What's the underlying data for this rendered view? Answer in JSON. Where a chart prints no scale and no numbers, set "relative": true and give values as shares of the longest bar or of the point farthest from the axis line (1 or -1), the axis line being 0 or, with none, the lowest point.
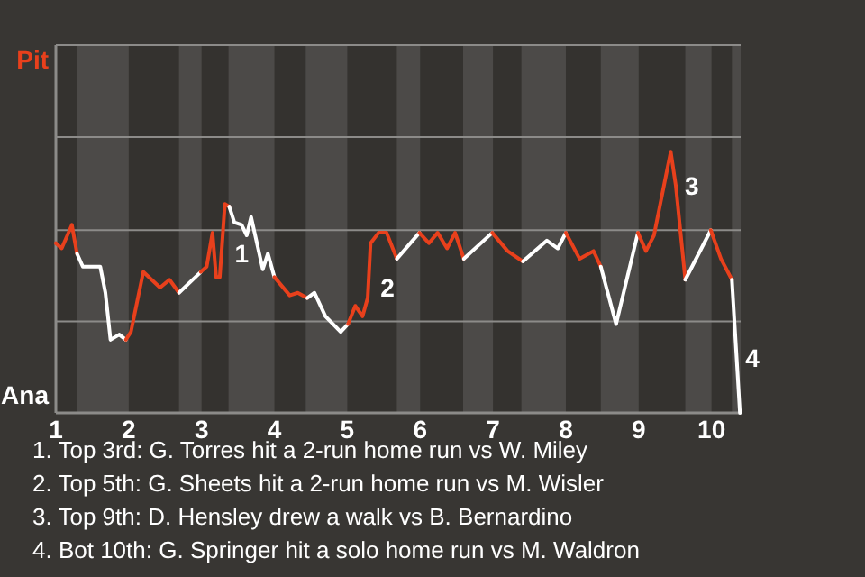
{
  "chart_data": {
    "type": "line",
    "relative": true,
    "xlim": [
      1,
      10.4
    ],
    "xticks": [
      1,
      2,
      3,
      4,
      5,
      6,
      7,
      8,
      9,
      10
    ],
    "marker": "none",
    "line_style": "solid",
    "ref_lines": [
      {
        "axis": "y",
        "value": 0.35,
        "color": "#8c8b89"
      },
      {
        "axis": "y",
        "value": 0.7,
        "color": "#8c8b89"
      }
    ],
    "bands": [
      {
        "axis": "x",
        "from": 1.29,
        "to": 2,
        "color": "#4c4a48"
      },
      {
        "axis": "x",
        "from": 2.69,
        "to": 3,
        "color": "#4c4a48"
      },
      {
        "axis": "x",
        "from": 3.37,
        "to": 4,
        "color": "#4c4a48"
      },
      {
        "axis": "x",
        "from": 4.43,
        "to": 5,
        "color": "#4c4a48"
      },
      {
        "axis": "x",
        "from": 5.68,
        "to": 6,
        "color": "#4c4a48"
      },
      {
        "axis": "x",
        "from": 6.59,
        "to": 7,
        "color": "#4c4a48"
      },
      {
        "axis": "x",
        "from": 7.39,
        "to": 8,
        "color": "#4c4a48"
      },
      {
        "axis": "x",
        "from": 8.48,
        "to": 9,
        "color": "#4c4a48"
      },
      {
        "axis": "x",
        "from": 9.64,
        "to": 10,
        "color": "#4c4a48"
      },
      {
        "axis": "x",
        "from": 10.28,
        "to": 10.4,
        "color": "#4c4a48"
      }
    ],
    "series": [
      {
        "name": "Pit",
        "color": "#e8401c",
        "x": [
          1,
          1.08,
          1.22,
          1.29
        ],
        "values": [
          0.65,
          0.63,
          0.72,
          0.61
        ]
      },
      {
        "name": "Ana",
        "color": "#ffffff",
        "x": [
          1.29,
          1.37,
          1.61,
          1.68,
          1.75,
          1.87,
          1.96
        ],
        "values": [
          0.61,
          0.56,
          0.56,
          0.46,
          0.28,
          0.3,
          0.28
        ]
      },
      {
        "color": "#e8401c",
        "x": [
          1.96,
          2.03,
          2.2,
          2.43,
          2.56,
          2.69
        ],
        "values": [
          0.28,
          0.31,
          0.54,
          0.48,
          0.51,
          0.46
        ]
      },
      {
        "color": "#ffffff",
        "x": [
          2.69,
          2.99
        ],
        "values": [
          0.46,
          0.54
        ]
      },
      {
        "color": "#e8401c",
        "x": [
          2.99,
          3.07,
          3.15,
          3.2,
          3.25,
          3.32,
          3.38
        ],
        "values": [
          0.54,
          0.56,
          0.69,
          0.52,
          0.52,
          0.8,
          0.79
        ]
      },
      {
        "color": "#ffffff",
        "x": [
          3.38,
          3.45,
          3.55,
          3.62,
          3.68,
          3.84,
          3.91,
          4
        ],
        "values": [
          0.79,
          0.73,
          0.72,
          0.68,
          0.75,
          0.55,
          0.61,
          0.52
        ]
      },
      {
        "color": "#e8401c",
        "x": [
          4,
          4.21,
          4.32,
          4.45
        ],
        "values": [
          0.52,
          0.45,
          0.46,
          0.44
        ]
      },
      {
        "color": "#ffffff",
        "x": [
          4.45,
          4.55,
          4.7,
          4.91,
          5.01
        ],
        "values": [
          0.44,
          0.46,
          0.37,
          0.31,
          0.34
        ]
      },
      {
        "color": "#e8401c",
        "x": [
          5.01,
          5.11,
          5.21,
          5.28,
          5.32,
          5.43,
          5.54,
          5.68
        ],
        "values": [
          0.34,
          0.41,
          0.37,
          0.44,
          0.65,
          0.69,
          0.69,
          0.59
        ]
      },
      {
        "color": "#ffffff",
        "x": [
          5.68,
          5.99
        ],
        "values": [
          0.59,
          0.69
        ]
      },
      {
        "color": "#e8401c",
        "x": [
          5.99,
          6.12,
          6.24,
          6.37,
          6.48,
          6.6
        ],
        "values": [
          0.69,
          0.65,
          0.69,
          0.63,
          0.69,
          0.59
        ]
      },
      {
        "color": "#ffffff",
        "x": [
          6.6,
          6.99
        ],
        "values": [
          0.59,
          0.69
        ]
      },
      {
        "color": "#e8401c",
        "x": [
          6.99,
          7.2,
          7.41
        ],
        "values": [
          0.69,
          0.62,
          0.58
        ]
      },
      {
        "color": "#ffffff",
        "x": [
          7.41,
          7.74,
          7.89,
          8
        ],
        "values": [
          0.58,
          0.66,
          0.63,
          0.69
        ]
      },
      {
        "color": "#e8401c",
        "x": [
          8,
          8.19,
          8.38,
          8.48
        ],
        "values": [
          0.69,
          0.59,
          0.62,
          0.56
        ]
      },
      {
        "color": "#ffffff",
        "x": [
          8.48,
          8.69,
          8.99
        ],
        "values": [
          0.56,
          0.34,
          0.69
        ]
      },
      {
        "color": "#e8401c",
        "x": [
          8.99,
          9.1,
          9.21,
          9.44,
          9.51,
          9.64
        ],
        "values": [
          0.69,
          0.62,
          0.68,
          1,
          0.87,
          0.51
        ]
      },
      {
        "color": "#ffffff",
        "x": [
          9.64,
          9.99
        ],
        "values": [
          0.51,
          0.7
        ]
      },
      {
        "color": "#e8401c",
        "x": [
          9.99,
          10.13,
          10.28
        ],
        "values": [
          0.7,
          0.59,
          0.51
        ]
      },
      {
        "color": "#ffffff",
        "x": [
          10.28,
          10.31,
          10.39
        ],
        "values": [
          0.51,
          0.37,
          0
        ]
      }
    ],
    "annotations": [
      {
        "text": "1",
        "x": 3.38,
        "y": 0.61
      },
      {
        "text": "2",
        "x": 5.38,
        "y": 0.48
      },
      {
        "text": "3",
        "x": 9.56,
        "y": 0.87
      },
      {
        "text": "4",
        "x": 10.39,
        "y": 0.21
      },
      "1. Top 3rd: G. Torres hit a 2-run home run vs W. Miley",
      "2. Top 5th: G. Sheets hit a 2-run home run vs M. Wisler",
      "3. Top 9th: D. Hensley drew a walk vs B. Bernardino",
      "4. Bot 10th: G. Springer hit a solo home run vs M. Waldron"
    ]
  }
}
